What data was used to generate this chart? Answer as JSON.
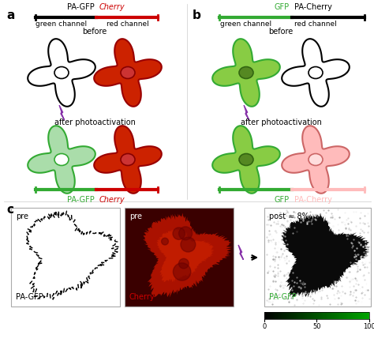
{
  "panel_a_label": "a",
  "panel_b_label": "b",
  "panel_c_label": "c",
  "color_black": "#1a1a1a",
  "color_red": "#cc0000",
  "color_green_dark": "#33aa33",
  "color_green_light": "#aaddaa",
  "color_pink_light": "#ffbbbb",
  "color_purple": "#8833aa",
  "color_red_cell": "#cc2200",
  "color_green_cell": "#88cc44",
  "color_white": "#ffffff",
  "color_gray": "#888888",
  "bar_black": "#111111",
  "bar_red": "#dd2222",
  "bar_green": "#55bb33",
  "label_pagfp": "PA-GFP",
  "label_cherry": "Cherry",
  "label_gfp": "GFP",
  "label_pacherry": "PA-Cherry",
  "label_green_channel": "green channel",
  "label_red_channel": "red channel",
  "label_before": "before",
  "label_after": "after photoactivation",
  "label_pre": "pre",
  "label_post": "post ≈ 8%",
  "label_pagfp_c": "PA-GFP",
  "label_cherry_c": "Cherry",
  "colorbar_ticks": [
    0,
    50,
    100
  ],
  "figure_bg": "#ffffff"
}
